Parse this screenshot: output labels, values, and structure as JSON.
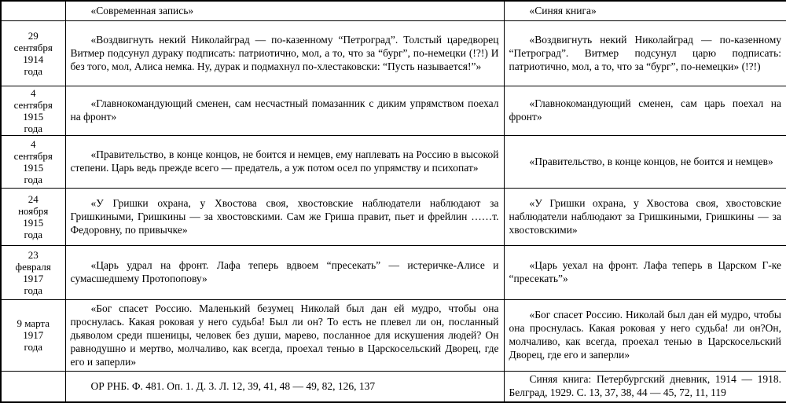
{
  "table": {
    "header": {
      "date_col": "",
      "modern_col": "«Современная запись»",
      "blue_col": "«Синяя книга»"
    },
    "rows": [
      {
        "date": "29\nсентября\n1914\nгода",
        "modern": "«Воздвигнуть некий Николайград — по-казенному “Петроград”. Толстый царедворец Витмер подсунул дураку подписать: патриотично, мол, а то, что за “бург”, по-немецки (!?!) И без того, мол, Алиса немка. Ну, дурак и подмахнул по-хлестаковски: “Пусть называется!”»",
        "blue": "«Воздвигнуть некий Николайград — по-казенному “Петроград”. Витмер подсунул царю подписать: патриотично, мол, а то, что за “бург”, по-немецки» (!?!)"
      },
      {
        "date": "4\nсентября\n1915\nгода",
        "modern": "«Главнокомандующий сменен, сам несчастный помазанник с диким упрямством поехал на фронт»",
        "blue": "«Главнокомандующий сменен, сам царь поехал на фронт»"
      },
      {
        "date": "4\nсентября\n1915\nгода",
        "modern": "«Правительство, в конце концов, не боится и немцев, ему наплевать на Россию в высокой степени. Царь ведь прежде всего — предатель, а уж потом осел по упрямству и психопат»",
        "blue": "«Правительство, в конце концов, не боится и немцев»"
      },
      {
        "date": "24\nноября\n1915\nгода",
        "modern": "«У Гришки охрана, у Хвостова своя, хвостовские наблюдатели наблюдают за Гришкиными, Гришкины — за хвостовскими. Сам же Гриша правит, пьет и фрейлин ……т. Федоровну, по привычке»",
        "blue": "«У Гришки охрана, у Хвостова своя, хвостовские наблюдатели наблюдают за Гришкиными, Гришкины — за хвостовскими»"
      },
      {
        "date": "23\nфевраля\n1917\nгода",
        "modern": "«Царь удрал на фронт. Лафа теперь вдвоем “пресекать” — истеричке-Алисе и сумасшедшему Протопопову»",
        "blue": "«Царь уехал на фронт. Лафа теперь в Царском Г-ке “пресекать”»"
      },
      {
        "date": "9 марта\n1917\nгода",
        "modern": "«Бог спасет Россию. Маленький безумец Николай был дан ей мудро, чтобы она проснулась. Какая роковая у него судьба! Был ли он? То есть не плевел ли он, посланный дьяволом среди пшеницы, человек без души, марево, посланное для искушения людей? Он равнодушно и мертво, молчаливо, как всегда, проехал тенью в Царскосельский Дворец, где его и заперли»",
        "blue": "«Бог спасет Россию. Николай был дан ей мудро, чтобы она проснулась. Какая роковая у него судьба! ли он?Он, молчаливо, как всегда, проехал тенью в Царскосельский Дворец, где его и заперли»"
      }
    ],
    "footer": {
      "date_col": "",
      "modern_source": "ОР РНБ. Ф. 481. Оп. 1. Д. 3. Л. 12, 39, 41, 48 — 49, 82, 126, 137",
      "blue_source": "Синяя книга: Петербургский дневник, 1914 — 1918. Белград, 1929. С. 13, 37, 38, 44 — 45, 72, 11, 119"
    }
  }
}
